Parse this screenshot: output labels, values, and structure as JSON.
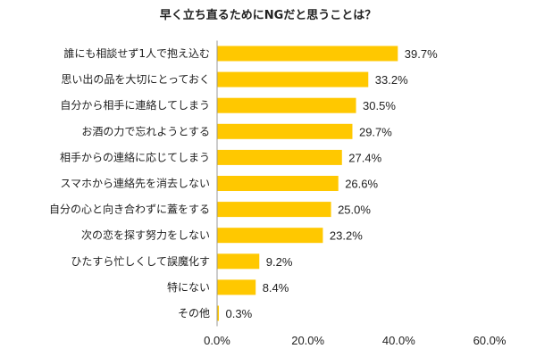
{
  "chart_data": {
    "type": "bar",
    "orientation": "horizontal",
    "title": "早く立ち直るためにNGだと思うことは？",
    "categories": [
      "誰にも相談せず1人で抱え込む",
      "思い出の品を大切にとっておく",
      "自分から相手に連絡してしまう",
      "お酒の力で忘れようとする",
      "相手からの連絡に応じてしまう",
      "スマホから連絡先を消去しない",
      "自分の心と向き合わずに蓋をする",
      "次の恋を探す努力をしない",
      "ひたすら忙しくして誤魔化す",
      "特にない",
      "その他"
    ],
    "values": [
      39.7,
      33.2,
      30.5,
      29.7,
      27.4,
      26.6,
      25.0,
      23.2,
      9.2,
      8.4,
      0.3
    ],
    "value_labels": [
      "39.7%",
      "33.2%",
      "30.5%",
      "29.7%",
      "27.4%",
      "26.6%",
      "25.0%",
      "23.2%",
      "9.2%",
      "8.4%",
      "0.3%"
    ],
    "xlim": [
      0,
      60
    ],
    "xticks": [
      0,
      20,
      40,
      60
    ],
    "xtick_labels": [
      "0.0%",
      "20.0%",
      "40.0%",
      "60.0%"
    ],
    "xlabel": "",
    "ylabel": "",
    "grid": false,
    "legend": "none",
    "colors": {
      "bar": "#FFC800",
      "axis": "#999999",
      "text": "#222222"
    }
  }
}
